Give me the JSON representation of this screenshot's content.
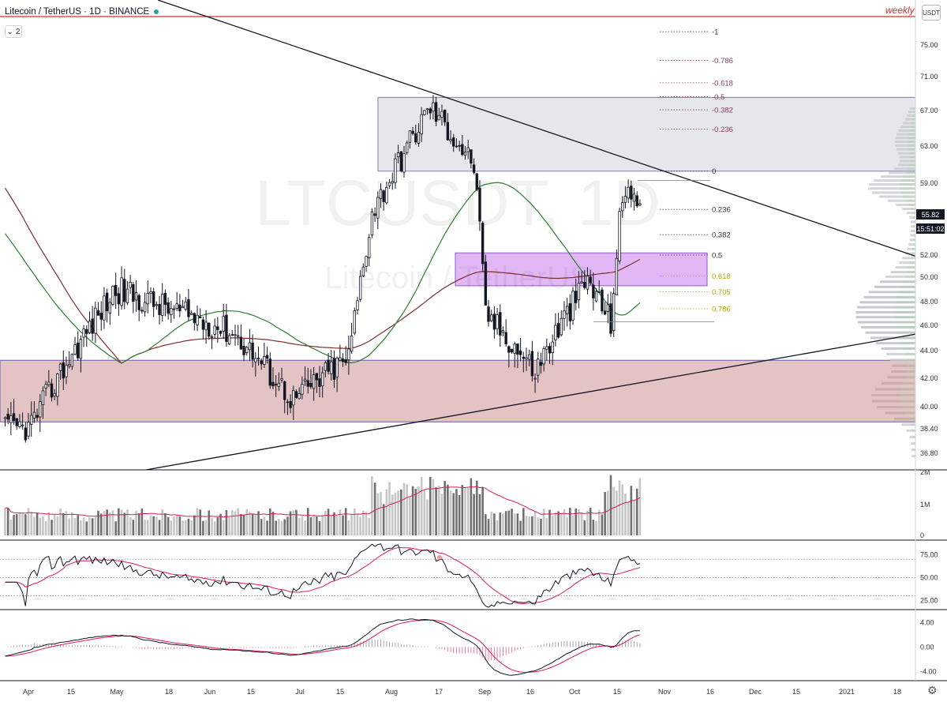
{
  "header": {
    "symbol_title": "Litecoin / TetherUS · 1D · BINANCE",
    "collapse_count": "2",
    "weekly_label": "weekly",
    "currency_button": "USDT"
  },
  "watermark": {
    "line1": "LTCUSDT, 1D",
    "line2": "Litecoin / TetherUS"
  },
  "last_price": {
    "value": "55.82",
    "countdown": "15:51:02"
  },
  "colors": {
    "up": "#131722",
    "down": "#131722",
    "ma_green": "#2e7d32",
    "ma_maroon": "#7b2d2d",
    "supply_zone": "#e6e7ea",
    "purple_zone": "#e1b7f5",
    "demand_zone": "#e4c3c5",
    "weekly_line": "#d32f2f",
    "fib_maroon": "#8b3a62",
    "fib_olive": "#b8a400",
    "volume_ma": "#d81b60",
    "rsi_ma": "#d81b60",
    "macd_signal": "#d81b60"
  },
  "chart_data": [
    {
      "type": "candlestick",
      "y_axis_labels": [
        "75.00",
        "71.00",
        "67.00",
        "63.00",
        "59.00",
        "52.00",
        "50.00",
        "48.00",
        "46.00",
        "44.00",
        "42.00",
        "40.00",
        "38.40",
        "36.80"
      ],
      "x_axis_labels": [
        "Apr",
        "15",
        "May",
        "18",
        "Jun",
        "15",
        "Jul",
        "15",
        "Aug",
        "17",
        "Sep",
        "16",
        "Oct",
        "15",
        "Nov",
        "16",
        "Dec",
        "15",
        "2021",
        "18"
      ],
      "ylim": [
        36.0,
        79.0
      ],
      "fib_levels": [
        {
          "label": "-1",
          "price": 76.5
        },
        {
          "label": "-0.786",
          "price": 73.3
        },
        {
          "label": "-0.618",
          "price": 70.8
        },
        {
          "label": "-0.5",
          "price": 68.9
        },
        {
          "label": "-0.382",
          "price": 67.1
        },
        {
          "label": "-0.236",
          "price": 64.9
        },
        {
          "label": "0",
          "price": 60.3
        },
        {
          "label": "0.236",
          "price": 56.3
        },
        {
          "label": "0.382",
          "price": 53.9
        },
        {
          "label": "0.5",
          "price": 52.0
        },
        {
          "label": "0.618",
          "price": 50.1
        },
        {
          "label": "0.705",
          "price": 48.8
        },
        {
          "label": "0.786",
          "price": 47.4
        }
      ],
      "zones": [
        {
          "name": "supply",
          "top": 68.8,
          "bottom": 60.3
        },
        {
          "name": "purple",
          "top": 52.2,
          "bottom": 49.3
        },
        {
          "name": "demand",
          "top": 43.3,
          "bottom": 38.9
        }
      ],
      "weekly_level": 78.2,
      "key_points": [
        {
          "date": "Apr 1",
          "price": 38.5
        },
        {
          "date": "May 1",
          "price": 49.0
        },
        {
          "date": "Jun 10",
          "price": 45.5
        },
        {
          "date": "Jul 1",
          "price": 40.5
        },
        {
          "date": "Jul 20",
          "price": 43.5
        },
        {
          "date": "Jul 28",
          "price": 56.0
        },
        {
          "date": "Aug 17",
          "price": 67.5
        },
        {
          "date": "Sep 1",
          "price": 61.0
        },
        {
          "date": "Sep 5",
          "price": 47.0
        },
        {
          "date": "Sep 22",
          "price": 42.5
        },
        {
          "date": "Oct 10",
          "price": 49.8
        },
        {
          "date": "Oct 18",
          "price": 46.3
        },
        {
          "date": "Oct 21",
          "price": 55.0
        },
        {
          "date": "Oct 24",
          "price": 59.3
        },
        {
          "date": "Oct 28",
          "price": 55.8
        }
      ]
    },
    {
      "type": "bar",
      "name": "Volume",
      "y_axis_labels": [
        "2M",
        "1M",
        "0"
      ],
      "ylim": [
        0,
        2000000
      ]
    },
    {
      "type": "line",
      "name": "RSI",
      "y_axis_labels": [
        "75.00",
        "50.00",
        "25.00"
      ],
      "ylim": [
        15,
        90
      ],
      "levels": [
        70,
        50,
        30
      ]
    },
    {
      "type": "line",
      "name": "MACD",
      "y_axis_labels": [
        "4.00",
        "0.00",
        "-4.00"
      ],
      "ylim": [
        -5.5,
        6.0
      ]
    }
  ]
}
